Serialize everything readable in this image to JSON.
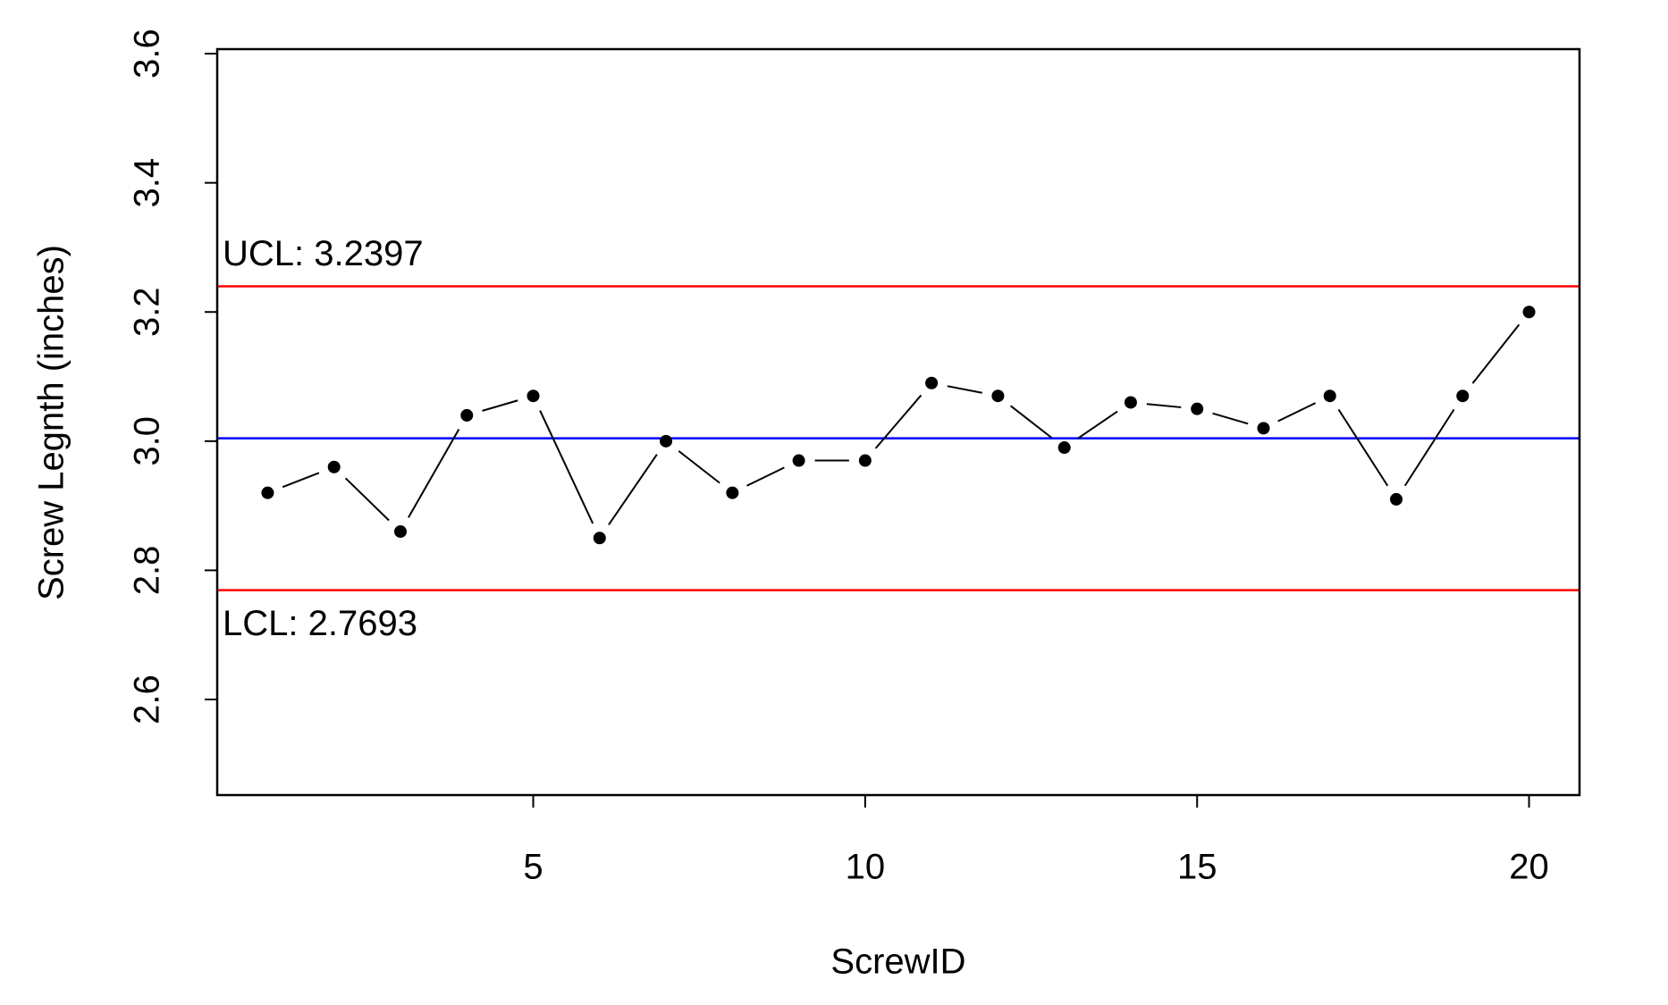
{
  "chart_data": {
    "type": "line",
    "x_label": "ScrewID",
    "y_label": "Screw Legnth (inches)",
    "x": [
      1,
      2,
      3,
      4,
      5,
      6,
      7,
      8,
      9,
      10,
      11,
      12,
      13,
      14,
      15,
      16,
      17,
      18,
      19,
      20
    ],
    "values": [
      2.92,
      2.96,
      2.86,
      3.04,
      3.07,
      2.85,
      3.0,
      2.92,
      2.97,
      2.97,
      3.09,
      3.07,
      2.99,
      3.06,
      3.05,
      3.02,
      3.07,
      2.91,
      3.07,
      3.2
    ],
    "color": "#000000",
    "center_line": {
      "value": 3.0045,
      "color": "#0000ff"
    },
    "control_limits": [
      {
        "value": 3.2397,
        "label": "UCL: 3.2397"
      },
      {
        "value": 2.7693,
        "label": "LCL: 2.7693"
      }
    ],
    "limit_color": "#ff0000",
    "xlim": [
      0.24,
      20.76
    ],
    "ylim": [
      2.452,
      3.607
    ],
    "xticks": [
      5,
      10,
      15,
      20
    ],
    "yticks": [
      2.6,
      2.8,
      {
        "value": 3,
        "label": "3.0"
      },
      3.2,
      3.4,
      3.6
    ]
  }
}
